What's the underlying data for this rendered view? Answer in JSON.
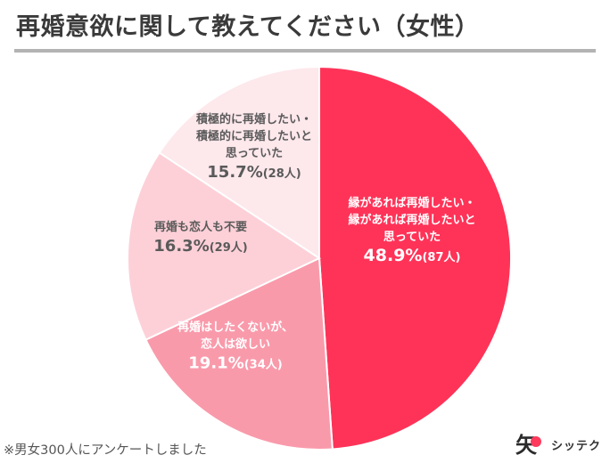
{
  "title": "再婚意欲に関して教えてください（女性）",
  "footnote": "※男女300人にアンケートしました",
  "logo": {
    "glyph": "矢",
    "text": "シッテク"
  },
  "chart_data": {
    "type": "pie",
    "title": "再婚意欲に関して教えてください（女性）",
    "total_respondents_note": "※男女300人にアンケートしました",
    "start": "12 o'clock",
    "direction": "clockwise",
    "slices": [
      {
        "label_lines": [
          "縁があれば再婚したい・",
          "縁があれば再婚したいと",
          "思っていた"
        ],
        "value": 48.9,
        "count": 87,
        "percent_text": "48.9%",
        "count_text": "(87人)",
        "color": "#ff3358",
        "label_color": "#ffffff"
      },
      {
        "label_lines": [
          "再婚はしたくないが、",
          "恋人は欲しい"
        ],
        "value": 19.1,
        "count": 34,
        "percent_text": "19.1%",
        "count_text": "(34人)",
        "color": "#f99aab",
        "label_color": "#ffffff"
      },
      {
        "label_lines": [
          "再婚も恋人も不要"
        ],
        "value": 16.3,
        "count": 29,
        "percent_text": "16.3%",
        "count_text": "(29人)",
        "color": "#fdd0d8",
        "label_color": "#5a5a5a"
      },
      {
        "label_lines": [
          "積極的に再婚したい・",
          "積極的に再婚したいと",
          "思っていた"
        ],
        "value": 15.7,
        "count": 28,
        "percent_text": "15.7%",
        "count_text": "(28人)",
        "color": "#fde8ec",
        "label_color": "#5a5a5a"
      }
    ]
  }
}
